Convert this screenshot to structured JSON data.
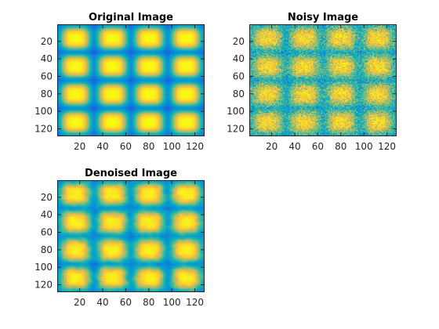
{
  "chart_data": [
    {
      "type": "heatmap",
      "title": "Original Image",
      "variant": "clean",
      "colormap": "parula",
      "size": [
        128,
        128
      ],
      "pattern": "4 x 4 grid of smooth rounded bright blobs (yellow centers) on a dark blue background",
      "grid": [
        4,
        4
      ],
      "xticks": [
        20,
        40,
        60,
        80,
        100,
        120
      ],
      "yticks": [
        20,
        40,
        60,
        80,
        100,
        120
      ],
      "xlim": [
        0.5,
        128.5
      ],
      "ylim": [
        0.5,
        128.5
      ],
      "y_direction": "reverse",
      "noise": 0,
      "seed": 11
    },
    {
      "type": "heatmap",
      "title": "Noisy Image",
      "variant": "noisy",
      "colormap": "parula",
      "size": [
        128,
        128
      ],
      "pattern": "same 4 x 4 blob grid with strong speckle noise; background light blue",
      "grid": [
        4,
        4
      ],
      "xticks": [
        20,
        40,
        60,
        80,
        100,
        120
      ],
      "yticks": [
        20,
        40,
        60,
        80,
        100,
        120
      ],
      "xlim": [
        0.5,
        128.5
      ],
      "ylim": [
        0.5,
        128.5
      ],
      "y_direction": "reverse",
      "noise": 0.22,
      "seed": 29
    },
    {
      "type": "heatmap",
      "title": "Denoised Image",
      "variant": "denoised",
      "colormap": "parula",
      "size": [
        128,
        128
      ],
      "pattern": "same 4 x 4 blob grid, smoothed with residual blotchy texture",
      "grid": [
        4,
        4
      ],
      "xticks": [
        20,
        40,
        60,
        80,
        100,
        120
      ],
      "yticks": [
        20,
        40,
        60,
        80,
        100,
        120
      ],
      "xlim": [
        0.5,
        128.5
      ],
      "ylim": [
        0.5,
        128.5
      ],
      "y_direction": "reverse",
      "noise": 0.07,
      "seed": 47
    }
  ]
}
